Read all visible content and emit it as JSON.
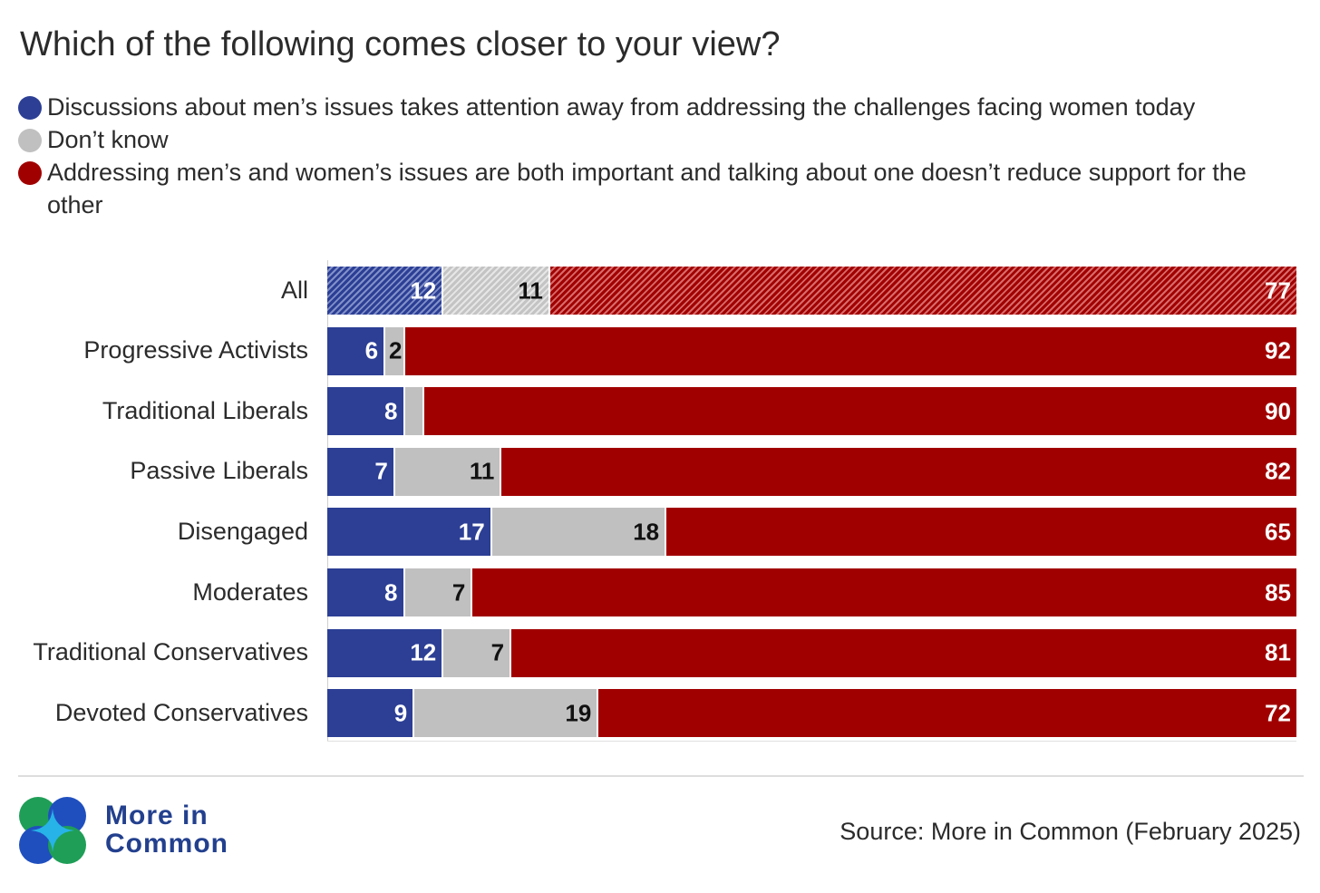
{
  "chart_data": {
    "type": "bar",
    "orientation": "horizontal",
    "stacked": true,
    "title": "Which of the following comes closer to your view?",
    "legend": [
      {
        "name": "Discussions about men’s issues takes attention away from addressing the challenges facing women today",
        "color": "#2c3f95"
      },
      {
        "name": "Don’t know",
        "color": "#c0c0c0"
      },
      {
        "name": "Addressing men’s and women’s issues are both important and talking about one doesn’t reduce support for the other",
        "color": "#a10000"
      }
    ],
    "categories": [
      "All",
      "Progressive Activists",
      "Traditional Liberals",
      "Passive Liberals",
      "Disengaged",
      "Moderates",
      "Traditional Conservatives",
      "Devoted Conservatives"
    ],
    "series": [
      {
        "name": "Discussions about men’s issues takes attention away",
        "values": [
          12,
          6,
          8,
          7,
          17,
          8,
          12,
          9
        ]
      },
      {
        "name": "Don’t know",
        "values": [
          11,
          2,
          2,
          11,
          18,
          7,
          7,
          19
        ]
      },
      {
        "name": "Both important",
        "values": [
          77,
          92,
          90,
          82,
          65,
          85,
          81,
          72
        ]
      }
    ],
    "labels_shown": [
      [
        "12",
        "11",
        "77"
      ],
      [
        "6",
        "2",
        "92"
      ],
      [
        "8",
        "",
        "90"
      ],
      [
        "7",
        "11",
        "82"
      ],
      [
        "17",
        "18",
        "65"
      ],
      [
        "8",
        "7",
        "85"
      ],
      [
        "12",
        "7",
        "81"
      ],
      [
        "9",
        "19",
        "72"
      ]
    ],
    "highlighted_category": "All",
    "xlim": [
      0,
      100
    ],
    "xlabel": "",
    "ylabel": ""
  },
  "footer": {
    "brand_line1": "More in",
    "brand_line2": "Common",
    "source": "Source: More in Common (February 2025)"
  }
}
